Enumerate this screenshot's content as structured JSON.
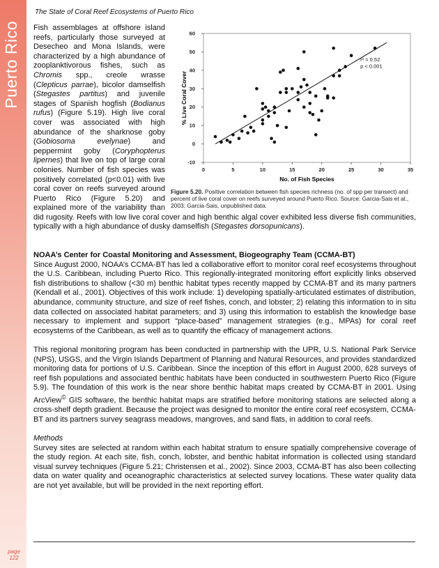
{
  "header": {
    "running_title": "The State of Coral Reef Ecosystems of Puerto Rico"
  },
  "sidebar": {
    "section": "Puerto Rico",
    "page_label": "page",
    "page_number": "122"
  },
  "chart_data": {
    "type": "scatter",
    "x_label": "No. of Fish Species",
    "y_label": "% Live Coral Cover",
    "annotations": [
      "r² = 0.52",
      "p < 0.001"
    ],
    "xlim": [
      0,
      35
    ],
    "xticks": [
      0,
      5,
      10,
      15,
      20,
      25,
      30,
      35
    ],
    "ylim": [
      -10,
      60
    ],
    "yticks": [
      -10,
      0,
      10,
      20,
      30,
      40,
      50,
      60
    ],
    "color": "#111111",
    "x": [
      2,
      3,
      4,
      4.5,
      5,
      6,
      6.5,
      7,
      7.5,
      8,
      8.5,
      9,
      10,
      10,
      10,
      10,
      10.5,
      11,
      11,
      11.5,
      12,
      12,
      12,
      12.5,
      13,
      13,
      13.5,
      14,
      14,
      14,
      14.5,
      15,
      16,
      16,
      16,
      16.5,
      17,
      17,
      17,
      17.5,
      18,
      18,
      18,
      18.5,
      19,
      19,
      19.5,
      20,
      20.5,
      21,
      21,
      22,
      22,
      22,
      23,
      23,
      24,
      25,
      29
    ],
    "values": [
      4,
      1,
      2,
      1,
      5,
      3,
      7,
      15,
      6,
      9,
      7,
      30,
      22,
      19,
      13,
      11,
      20,
      18,
      15,
      3,
      1,
      20,
      17,
      10,
      28,
      39,
      40,
      28,
      30,
      9,
      18,
      30,
      41,
      28,
      24,
      31,
      20,
      50,
      35,
      32,
      28,
      22,
      17,
      16,
      26,
      5,
      13,
      18,
      30,
      26,
      25,
      37,
      52,
      25,
      40,
      37,
      42,
      48,
      52
    ],
    "trend_line": {
      "x": [
        2,
        31
      ],
      "y": [
        0,
        55
      ]
    }
  },
  "figure": {
    "caption": {
      "runs": [
        {
          "text": "Figure 5.20.",
          "style": "bold"
        },
        "  Positive correlation between fish species richness (no. of spp per transect) and percent of live coral cover on reefs surveyed around Puerto Rico.  Source: Garcia-Sais et al., 2003; Garcia-Sais, unpublished data."
      ]
    }
  },
  "body": {
    "paragraph_1": {
      "runs": [
        "Fish assemblages at offshore island reefs, particularly those surveyed at Desecheo and Mona Islands, were characterized by a high abundance of zooplanktivorous fishes, such as ",
        {
          "text": "Chromis",
          "style": "italic"
        },
        " spp., creole wrasse (",
        {
          "text": "Clepticus parrae",
          "style": "italic"
        },
        "), bicolor damselfish (",
        {
          "text": "Stegastes partitus",
          "style": "italic"
        },
        ") and juvenile stages of Spanish hogfish (",
        {
          "text": "Bodianus rufus",
          "style": "italic"
        },
        ") (Figure 5.19).  High live coral cover was associated with high abundance of the sharknose goby (",
        {
          "text": "Gobiosoma evelynae",
          "style": "italic"
        },
        ") and peppermint goby (",
        {
          "text": "Coryphopterus lipernes",
          "style": "italic"
        },
        ") that live on top of large coral colonies.  Number of fish species was positively correlated (p<0.01) with live coral cover on reefs surveyed around Puerto Rico (Figure 5.20) and explained more of the variability than did rugosity.  Reefs with low live coral cover and high benthic algal cover exhibited less diverse fish communities, typically with a high abundance of dusky damselfish (",
        {
          "text": "Stegastes dorsopunicans",
          "style": "italic"
        },
        ")."
      ]
    },
    "section_heading": "NOAA’s Center for Coastal Monitoring and Assessment, Biogeography Team (CCMA-BT)",
    "paragraph_2": {
      "runs": [
        "Since August 2000, NOAA’s CCMA-BT has led a collaborative effort to monitor coral reef ecosystems throughout the U.S. Caribbean, including Puerto Rico.  This regionally-integrated monitoring effort explicitly links observed fish distributions to shallow (<30 m) benthic habitat types recently mapped by CCMA-BT and its many partners (Kendall et al., 2001).  Objectives of this work include: 1) developing spatially-articulated estimates of distribution, abundance, community structure, and size of reef fishes, conch, and lobster; 2) relating this information to in situ data collected on associated habitat parameters; and 3) using this information to establish the knowledge base necessary to implement and support “place-based” management strategies (e.g., MPAs) for coral reef ecosystems of the Caribbean, as well as to quantify the efficacy of management actions."
      ]
    },
    "paragraph_3": {
      "runs": [
        "This regional monitoring program has been conducted in partnership with the UPR, U.S. National Park Service (NPS), USGS, and the Virgin Islands Department of Planning and Natural Resources, and provides standardized monitoring data for portions of U.S. Caribbean.  Since the inception of this effort in August 2000, 628 surveys of reef fish populations and associated benthic habitats have been conducted in southwestern Puerto Rico (Figure 5.9).  The foundation of this work is the near shore benthic habitat maps created by CCMA-BT in 2001.  Using ArcView",
        {
          "text": "©",
          "style": "sup"
        },
        " GIS software, the benthic habitat maps are stratified before monitoring stations are selected along a cross-shelf depth gradient.  Because the project was designed to monitor the entire coral reef ecosystem, CCMA-BT and its partners survey seagrass meadows, mangroves, and sand flats, in addition to coral reefs."
      ]
    },
    "methods_heading": "Methods",
    "paragraph_4": {
      "runs": [
        "Survey sites are selected at random within each habitat stratum to ensure spatially comprehensive coverage of the study region.  At each site, fish, conch, lobster, and benthic habitat information is collected using standard visual survey techniques (Figure 5.21; Christensen et al., 2002).  Since 2003, CCMA-BT has also been collecting data on water quality and oceanographic characteristics at selected survey locations.  These water quality data are not yet available, but will be provided in the next reporting effort."
      ]
    }
  }
}
